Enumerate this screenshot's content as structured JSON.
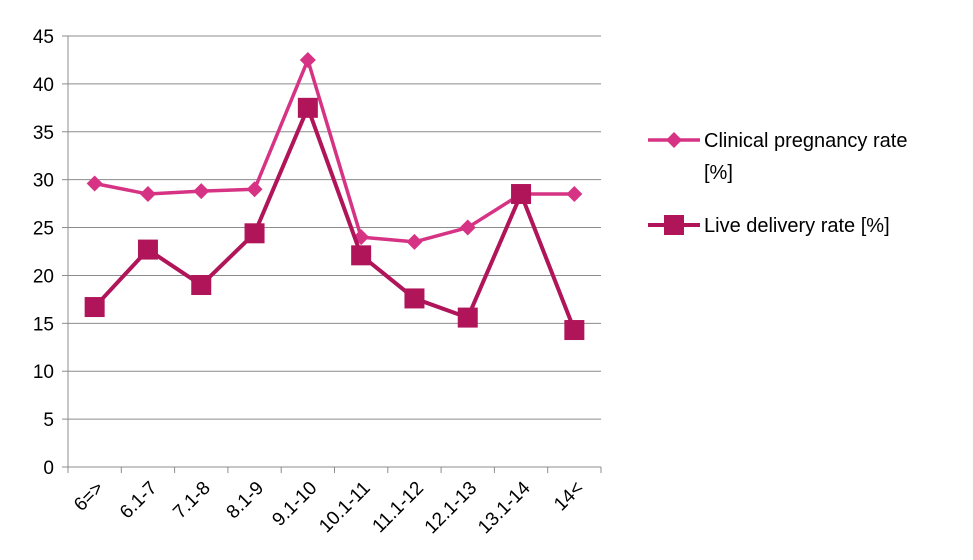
{
  "chart_data": {
    "type": "line",
    "title": "",
    "xlabel": "",
    "ylabel": "",
    "categories": [
      "6=>",
      "6.1-7",
      "7.1-8",
      "8.1-9",
      "9.1-10",
      "10.1-11",
      "11.1-12",
      "12.1-13",
      "13.1-14",
      "14<"
    ],
    "ylim": [
      0,
      45
    ],
    "yticks": [
      0,
      5,
      10,
      15,
      20,
      25,
      30,
      35,
      40,
      45
    ],
    "grid": "horizontal",
    "legend_position": "right",
    "series": [
      {
        "name_lines": [
          "Clinical pregnancy rate",
          "[%]"
        ],
        "marker": "diamond",
        "color": "#d63384",
        "values": [
          29.6,
          28.5,
          28.8,
          29.0,
          42.5,
          24.0,
          23.5,
          25.0,
          28.5,
          28.5
        ]
      },
      {
        "name_lines": [
          "Live delivery rate [%]"
        ],
        "marker": "square",
        "color": "#b0155a",
        "values": [
          16.7,
          22.7,
          19.0,
          24.4,
          37.5,
          22.1,
          17.6,
          15.6,
          28.5,
          14.3
        ]
      }
    ]
  }
}
